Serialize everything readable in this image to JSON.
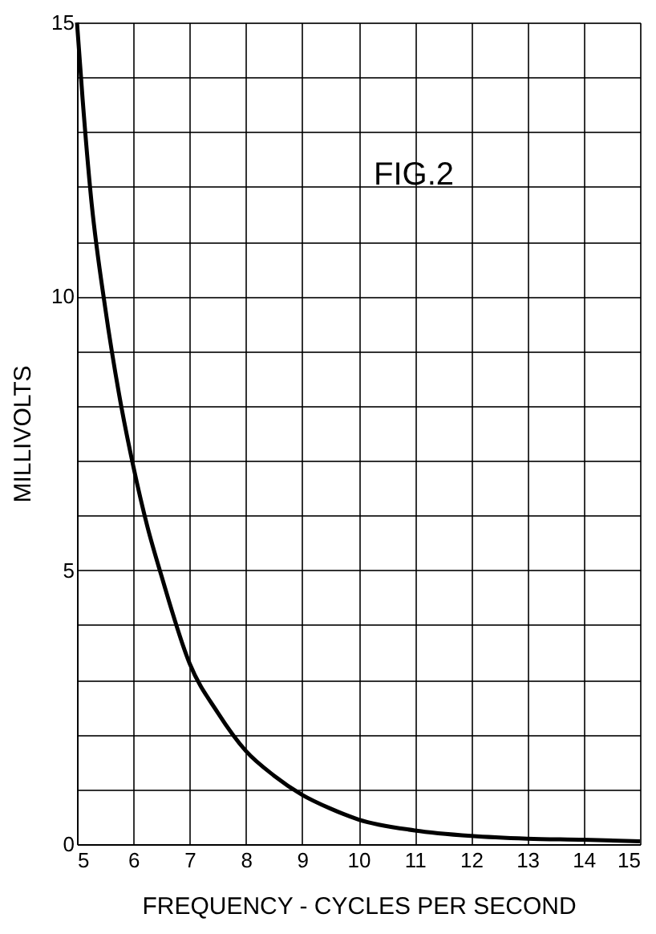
{
  "chart_data": {
    "type": "line",
    "x": [
      5,
      5.1,
      5.25,
      5.5,
      5.75,
      6,
      6.25,
      6.5,
      7,
      7.5,
      8,
      8.5,
      9,
      9.5,
      10,
      11,
      12,
      13,
      14,
      15
    ],
    "series": [
      {
        "color": "#000000",
        "values": [
          15,
          13.6,
          11.8,
          9.8,
          8.2,
          6.9,
          5.8,
          4.9,
          3.3,
          2.4,
          1.7,
          1.25,
          0.9,
          0.65,
          0.45,
          0.25,
          0.15,
          0.1,
          0.08,
          0.05
        ]
      }
    ],
    "xlabel": "FREQUENCY - CYCLES PER SECOND",
    "ylabel": "MILLIVOLTS",
    "annotations": [
      "FIG.2"
    ],
    "xlim": [
      5,
      15
    ],
    "xticks": [
      5,
      6,
      7,
      8,
      9,
      10,
      11,
      12,
      13,
      14,
      15
    ],
    "ylim": [
      0,
      15
    ],
    "yticks": [
      0,
      {
        "value": 1,
        "label": null
      },
      {
        "value": 2,
        "label": null
      },
      {
        "value": 3,
        "label": null
      },
      {
        "value": 4,
        "label": null
      },
      5,
      {
        "value": 6,
        "label": null
      },
      {
        "value": 7,
        "label": null
      },
      {
        "value": 8,
        "label": null
      },
      {
        "value": 9,
        "label": null
      },
      10,
      {
        "value": 11,
        "label": null
      },
      {
        "value": 12,
        "label": null
      },
      {
        "value": 13,
        "label": null
      },
      {
        "value": 14,
        "label": null
      },
      15
    ],
    "grid": true,
    "marker": "none",
    "line_style": "solid"
  }
}
